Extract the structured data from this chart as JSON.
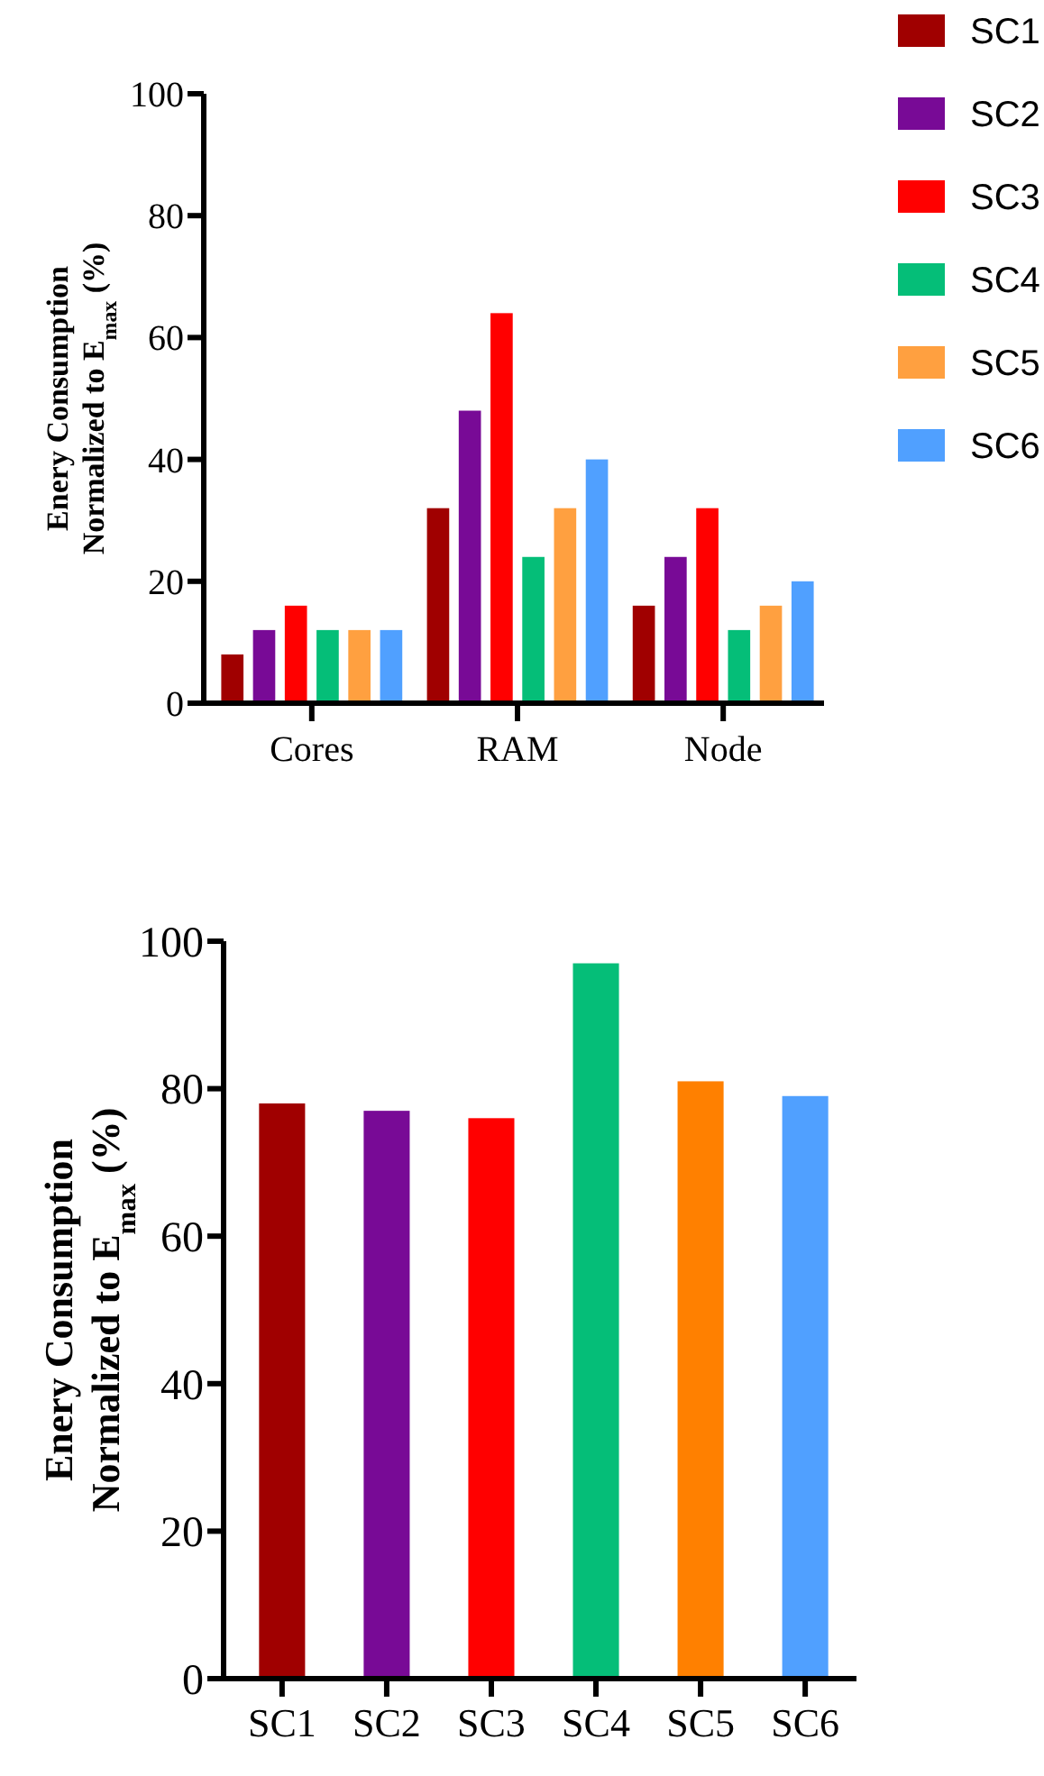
{
  "chart_data": [
    {
      "type": "bar",
      "categories": [
        "Cores",
        "RAM",
        "Node"
      ],
      "ylabel": "Enery Consumption\nNormalized to E$_{max}$ (%)",
      "ylim": [
        0,
        100
      ],
      "yticks": [
        0,
        20,
        40,
        60,
        80,
        100
      ],
      "legend": "top right",
      "series": [
        {
          "name": "SC1",
          "color": "#a00000",
          "values": [
            8,
            32,
            16
          ]
        },
        {
          "name": "SC2",
          "color": "#780a96",
          "values": [
            12,
            48,
            24
          ]
        },
        {
          "name": "SC3",
          "color": "#ff0000",
          "values": [
            16,
            64,
            32
          ]
        },
        {
          "name": "SC4",
          "color": "#05be78",
          "values": [
            12,
            24,
            12
          ]
        },
        {
          "name": "SC5",
          "color": "#ffa040",
          "values": [
            12,
            32,
            16
          ]
        },
        {
          "name": "SC6",
          "color": "#50a0ff",
          "values": [
            12,
            40,
            20
          ]
        }
      ]
    },
    {
      "type": "bar",
      "categories": [
        "SC1",
        "SC2",
        "SC3",
        "SC4",
        "SC5",
        "SC6"
      ],
      "ylabel": "Enery Consumption\nNormalized to E$_{max}$ (%)",
      "ylim": [
        0,
        100
      ],
      "yticks": [
        0,
        20,
        40,
        60,
        80,
        100
      ],
      "values": [
        78,
        77,
        76,
        97,
        81,
        79
      ],
      "colors": [
        "#a00000",
        "#780a96",
        "#ff0000",
        "#05be78",
        "#ff8000",
        "#50a0ff"
      ]
    }
  ]
}
